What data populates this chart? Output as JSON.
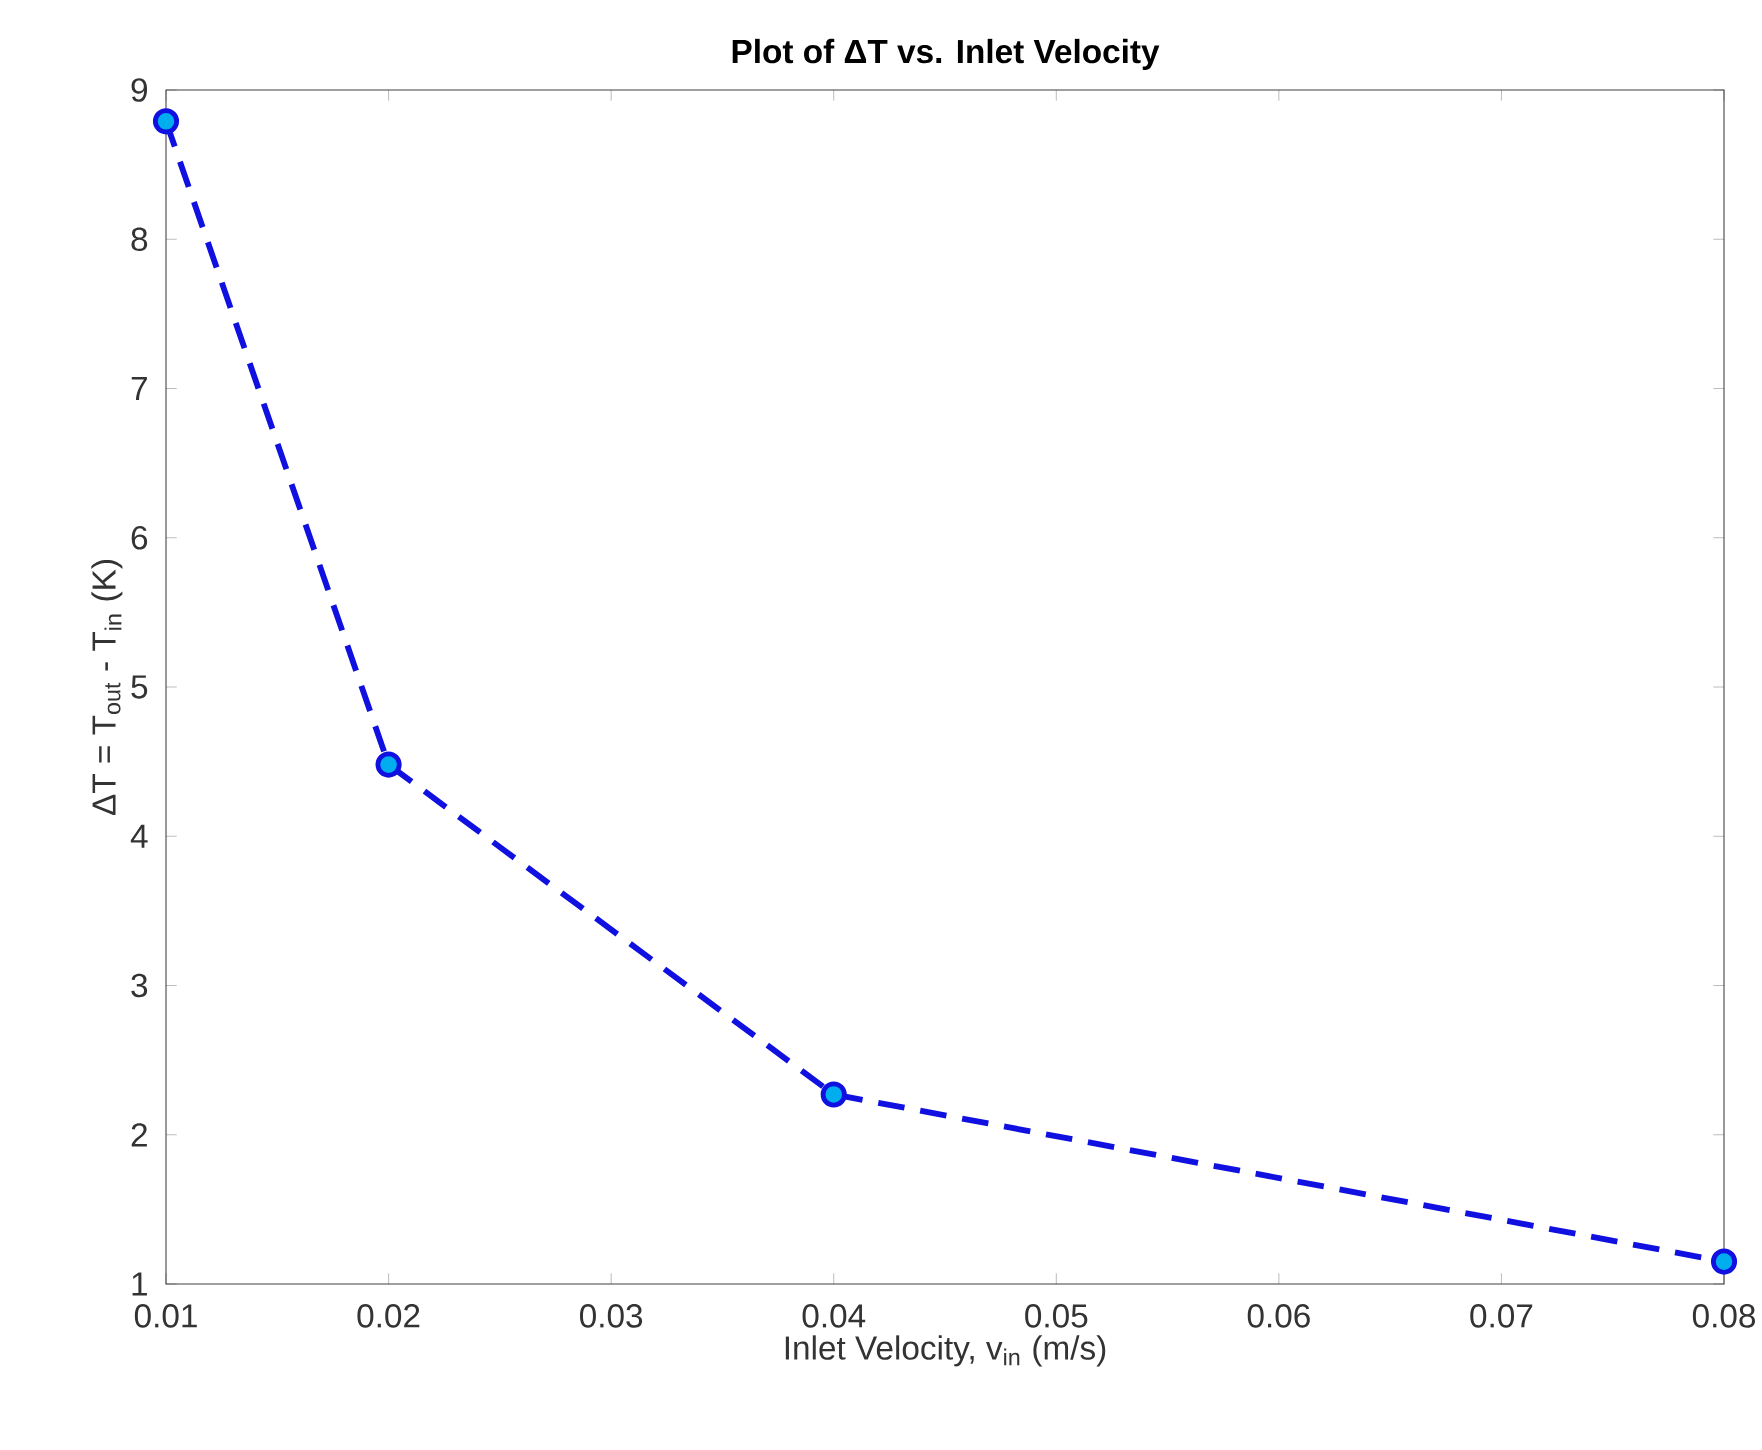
{
  "chart_data": {
    "type": "line",
    "title": "**Plot of ΔT vs. Inlet Velocity**",
    "xlabel": "Inlet Velocity, v$_{in}$ (m/s)",
    "ylabel": "ΔT = T$_{out}$ - T$_{in}$ (K)",
    "x": [
      0.01,
      0.02,
      0.04,
      0.08
    ],
    "series": [
      {
        "color": "#1010e0",
        "values": [
          8.79,
          4.48,
          2.27,
          1.15
        ]
      }
    ],
    "xlim": [
      0.01,
      0.08
    ],
    "xticks": [
      0.01,
      0.02,
      0.03,
      0.04,
      0.05,
      0.06,
      0.07,
      0.08
    ],
    "ylim": [
      1,
      9
    ],
    "yticks": [
      1,
      2,
      3,
      4,
      5,
      6,
      7,
      8,
      9
    ],
    "marker": "circle",
    "line_style": "dashed"
  }
}
